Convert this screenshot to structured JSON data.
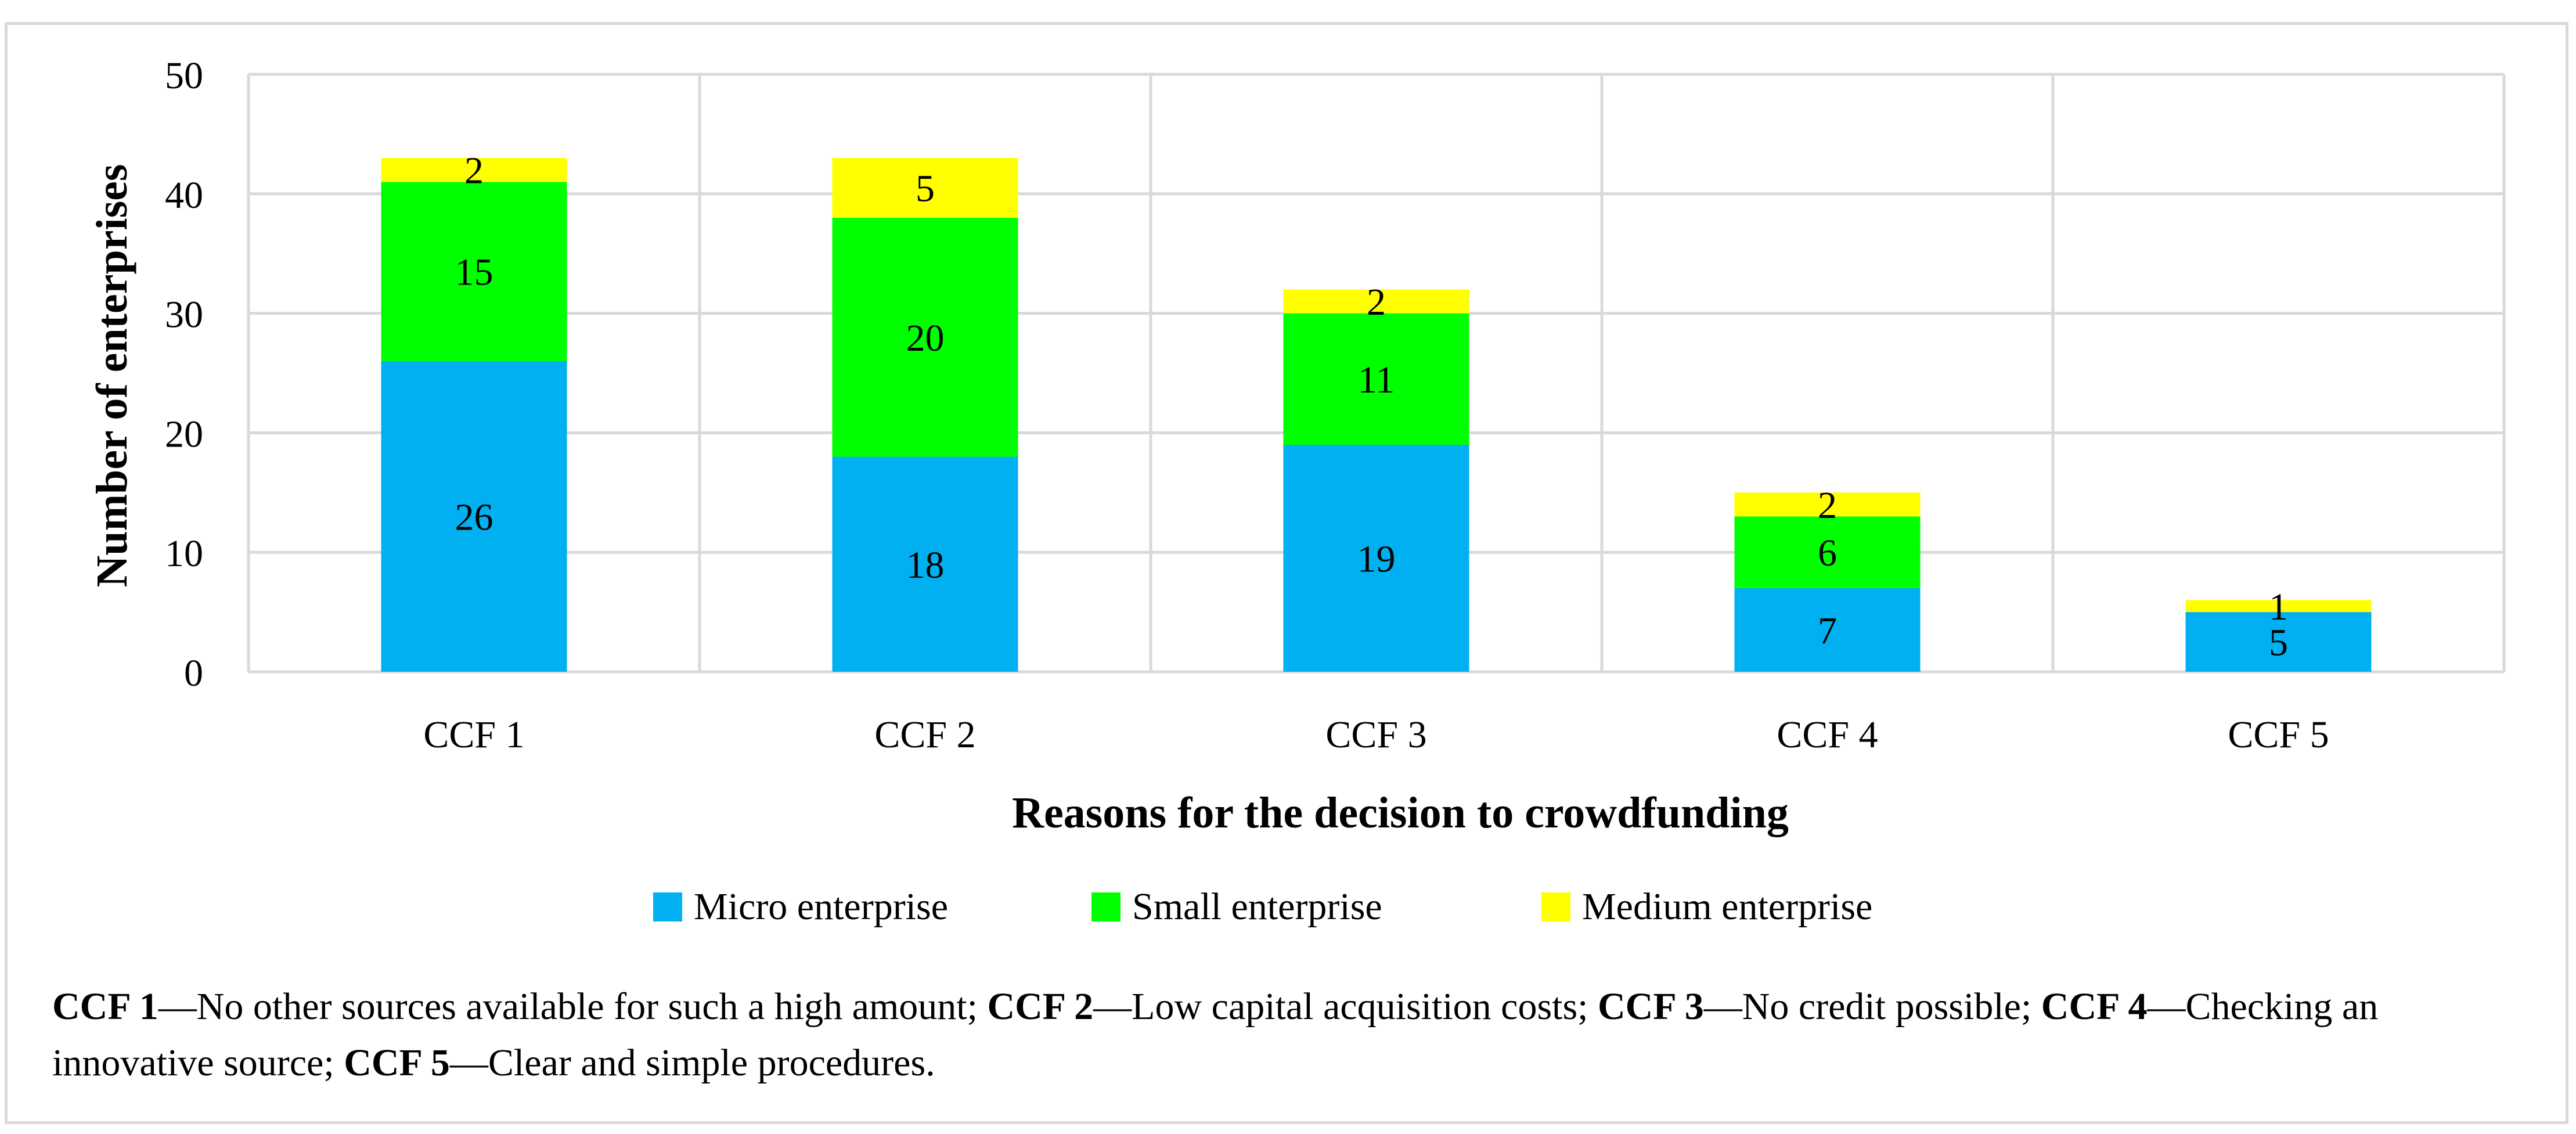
{
  "chart_data": {
    "type": "bar",
    "stacked": true,
    "categories": [
      "CCF 1",
      "CCF 2",
      "CCF 3",
      "CCF 4",
      "CCF 5"
    ],
    "series": [
      {
        "name": "Micro enterprise",
        "color": "#00B0F0",
        "values": [
          26,
          18,
          19,
          7,
          5
        ]
      },
      {
        "name": "Small enterprise",
        "color": "#00FF00",
        "values": [
          15,
          20,
          11,
          6,
          0
        ]
      },
      {
        "name": "Medium enterprise",
        "color": "#FFFF00",
        "values": [
          2,
          5,
          2,
          2,
          1
        ]
      }
    ],
    "xlabel": "Reasons for the decision to crowdfunding",
    "ylabel": "Number of enterprises",
    "ylim": [
      0,
      50
    ],
    "yticks": [
      0,
      10,
      20,
      30,
      40,
      50
    ],
    "grid": true,
    "legend": "bottom"
  },
  "caption": [
    {
      "key": "CCF 1",
      "text": "No other sources available for such a high amount; "
    },
    {
      "key": "CCF 2",
      "text": "Low capital acquisition costs; "
    },
    {
      "key": "CCF 3",
      "text": "No credit possible; "
    },
    {
      "key": "CCF 4",
      "text": "Checking an innovative source; "
    },
    {
      "key": "CCF 5",
      "text": "Clear and simple procedures."
    }
  ],
  "caption_separator": "—"
}
